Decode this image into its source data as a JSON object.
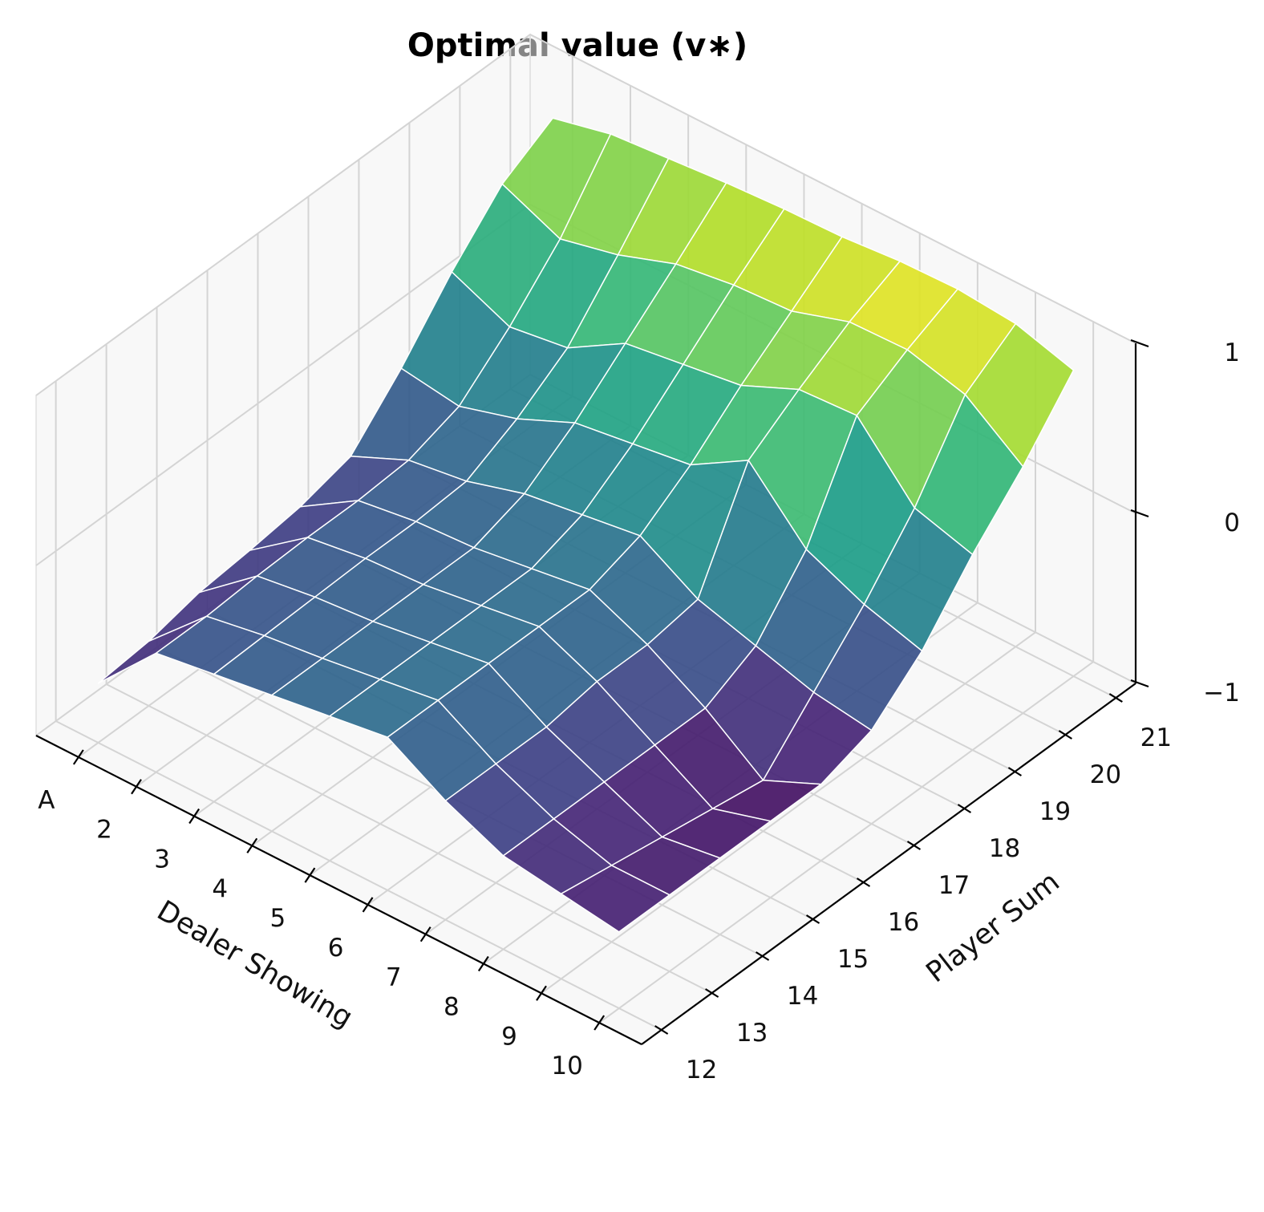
{
  "chart_data": {
    "type": "surface3d",
    "title": "Optimal value (v∗)",
    "xlabel": "Dealer Showing",
    "ylabel": "Player Sum",
    "zlabel": "",
    "x_tick_labels": [
      "A",
      "2",
      "3",
      "4",
      "5",
      "6",
      "7",
      "8",
      "9",
      "10"
    ],
    "y_tick_labels": [
      "12",
      "13",
      "14",
      "15",
      "16",
      "17",
      "18",
      "19",
      "20",
      "21"
    ],
    "z_tick_labels": [
      "−1",
      "0",
      "1"
    ],
    "x": [
      1,
      2,
      3,
      4,
      5,
      6,
      7,
      8,
      9,
      10
    ],
    "y": [
      12,
      13,
      14,
      15,
      16,
      17,
      18,
      19,
      20,
      21
    ],
    "zlim": [
      -1,
      1
    ],
    "colormap": "viridis",
    "grid": true,
    "z": [
      [
        -0.65,
        -0.62,
        -0.55,
        -0.52,
        -0.48,
        -0.4,
        -0.1,
        0.25,
        0.55,
        0.72
      ],
      [
        -0.3,
        -0.3,
        -0.28,
        -0.27,
        -0.27,
        -0.25,
        -0.15,
        0.1,
        0.4,
        0.8
      ],
      [
        -0.25,
        -0.24,
        -0.23,
        -0.22,
        -0.22,
        -0.2,
        -0.05,
        0.15,
        0.48,
        0.83
      ],
      [
        -0.2,
        -0.2,
        -0.2,
        -0.2,
        -0.2,
        -0.1,
        0.1,
        0.35,
        0.6,
        0.86
      ],
      [
        -0.15,
        -0.15,
        -0.15,
        -0.15,
        -0.15,
        -0.05,
        0.15,
        0.4,
        0.65,
        0.88
      ],
      [
        -0.1,
        -0.1,
        -0.1,
        -0.1,
        -0.1,
        0.0,
        0.2,
        0.45,
        0.67,
        0.89
      ],
      [
        -0.3,
        -0.3,
        -0.3,
        -0.25,
        -0.25,
        -0.2,
        0.4,
        0.6,
        0.78,
        0.92
      ],
      [
        -0.45,
        -0.45,
        -0.45,
        -0.45,
        -0.45,
        -0.3,
        0.05,
        0.62,
        0.79,
        0.93
      ],
      [
        -0.5,
        -0.55,
        -0.6,
        -0.65,
        -0.7,
        -0.4,
        -0.1,
        0.25,
        0.7,
        0.9
      ],
      [
        -0.55,
        -0.55,
        -0.55,
        -0.55,
        -0.55,
        -0.45,
        -0.2,
        0.15,
        0.45,
        0.8
      ]
    ]
  }
}
